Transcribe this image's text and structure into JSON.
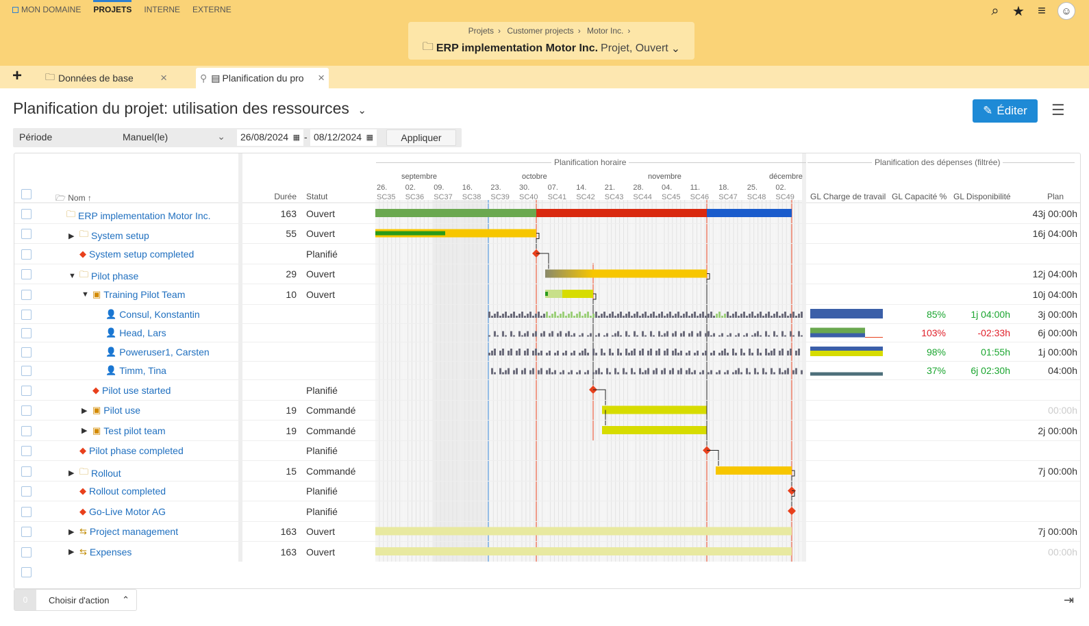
{
  "topnav": [
    {
      "label": "MON DOMAINE",
      "active": false
    },
    {
      "label": "PROJETS",
      "active": true
    },
    {
      "label": "INTERNE",
      "active": false
    },
    {
      "label": "EXTERNE",
      "active": false
    }
  ],
  "icons": {
    "search": "search-icon",
    "star": "star-icon",
    "menu": "menu-icon",
    "avatar": "user-avatar"
  },
  "breadcrumb": [
    "Projets",
    "Customer projects",
    "Motor Inc."
  ],
  "context": {
    "title": "ERP implementation Motor Inc.",
    "subtitle": "Projet, Ouvert"
  },
  "tabs": [
    {
      "label": "Données de base"
    },
    {
      "label": "Planification du pro"
    }
  ],
  "page": {
    "title": "Planification du projet: utilisation des ressources",
    "edit_label": "Éditer"
  },
  "filter": {
    "period_label": "Période",
    "mode": "Manuel(le)",
    "date_from": "26/08/2024",
    "date_to": "08/12/2024",
    "apply_label": "Appliquer"
  },
  "grid": {
    "col_name": "Nom",
    "col_duration": "Durée",
    "col_status": "Statut",
    "group_timeline": "Planification horaire",
    "group_costs": "Planification des dépenses (filtrée)",
    "col_gl_load": "GL Charge de travail",
    "col_gl_capacity": "GL Capacité %",
    "col_gl_availability": "GL Disponibilité",
    "col_plan": "Plan"
  },
  "timeline": {
    "months": [
      "septembre",
      "octobre",
      "novembre",
      "décembre"
    ],
    "days": [
      "26.",
      "02.",
      "09.",
      "16.",
      "23.",
      "30.",
      "07.",
      "14.",
      "21.",
      "28.",
      "04.",
      "11.",
      "18.",
      "25.",
      "02."
    ],
    "weeks": [
      "SC35",
      "SC36",
      "SC37",
      "SC38",
      "SC39",
      "SC40",
      "SC41",
      "SC42",
      "SC43",
      "SC44",
      "SC45",
      "SC46",
      "SC47",
      "SC48",
      "SC49"
    ]
  },
  "rows": [
    {
      "name": "ERP implementation Motor Inc.",
      "type": "project",
      "level": 0,
      "toggle": "",
      "duration": "163",
      "status": "Ouvert",
      "plan": "43j 00:00h"
    },
    {
      "name": "System setup",
      "type": "folder",
      "level": 1,
      "toggle": "▶",
      "duration": "55",
      "status": "Ouvert",
      "plan": "16j 04:00h"
    },
    {
      "name": "System setup completed",
      "type": "milestone",
      "level": 1,
      "toggle": "",
      "duration": "",
      "status": "Planifié",
      "plan": ""
    },
    {
      "name": "Pilot phase",
      "type": "folder",
      "level": 1,
      "toggle": "▼",
      "duration": "29",
      "status": "Ouvert",
      "plan": "12j 04:00h"
    },
    {
      "name": "Training Pilot Team",
      "type": "task",
      "level": 2,
      "toggle": "▼",
      "duration": "10",
      "status": "Ouvert",
      "plan": "10j 04:00h"
    },
    {
      "name": "Consul, Konstantin",
      "type": "person",
      "level": 3,
      "toggle": "",
      "duration": "",
      "status": "",
      "capacity": "85%",
      "availability": "1j 04:00h",
      "cap_color": "green",
      "avail_color": "green",
      "plan": "3j 00:00h"
    },
    {
      "name": "Head, Lars",
      "type": "person",
      "level": 3,
      "toggle": "",
      "duration": "",
      "status": "",
      "capacity": "103%",
      "availability": "-02:33h",
      "cap_color": "red",
      "avail_color": "red",
      "plan": "6j 00:00h"
    },
    {
      "name": "Poweruser1, Carsten",
      "type": "person",
      "level": 3,
      "toggle": "",
      "duration": "",
      "status": "",
      "capacity": "98%",
      "availability": "01:55h",
      "cap_color": "green",
      "avail_color": "green",
      "plan": "1j 00:00h"
    },
    {
      "name": "Timm, Tina",
      "type": "person",
      "level": 3,
      "toggle": "",
      "duration": "",
      "status": "",
      "capacity": "37%",
      "availability": "6j 02:30h",
      "cap_color": "green",
      "avail_color": "green",
      "plan": "04:00h"
    },
    {
      "name": "Pilot use started",
      "type": "milestone",
      "level": 2,
      "toggle": "",
      "duration": "",
      "status": "Planifié",
      "plan": ""
    },
    {
      "name": "Pilot use",
      "type": "task",
      "level": 2,
      "toggle": "▶",
      "duration": "19",
      "status": "Commandé",
      "plan": "00:00h",
      "plan_muted": true
    },
    {
      "name": "Test pilot team",
      "type": "task",
      "level": 2,
      "toggle": "▶",
      "duration": "19",
      "status": "Commandé",
      "plan": "2j 00:00h"
    },
    {
      "name": "Pilot phase completed",
      "type": "milestone",
      "level": 1,
      "toggle": "",
      "duration": "",
      "status": "Planifié",
      "plan": ""
    },
    {
      "name": "Rollout",
      "type": "folder",
      "level": 1,
      "toggle": "▶",
      "duration": "15",
      "status": "Commandé",
      "plan": "7j 00:00h"
    },
    {
      "name": "Rollout completed",
      "type": "milestone",
      "level": 1,
      "toggle": "",
      "duration": "",
      "status": "Planifié",
      "plan": ""
    },
    {
      "name": "Go-Live Motor AG",
      "type": "milestone",
      "level": 1,
      "toggle": "",
      "duration": "",
      "status": "Planifié",
      "plan": ""
    },
    {
      "name": "Project management",
      "type": "activity",
      "level": 1,
      "toggle": "▶",
      "duration": "163",
      "status": "Ouvert",
      "plan": "7j 00:00h"
    },
    {
      "name": "Expenses",
      "type": "activity",
      "level": 1,
      "toggle": "▶",
      "duration": "163",
      "status": "Ouvert",
      "plan": "00:00h",
      "plan_muted": true
    }
  ],
  "actions": {
    "count": "0",
    "label": "Choisir d'action"
  },
  "colors": {
    "accent": "#1e8ad6",
    "header_bg": "#fad377",
    "bar_yellow": "#f7c600",
    "bar_lime": "#d7dc00",
    "bar_green": "#6aa84f",
    "bar_red": "#d9290f",
    "bar_blue": "#1a5ccc",
    "milestone": "#e8401c"
  }
}
